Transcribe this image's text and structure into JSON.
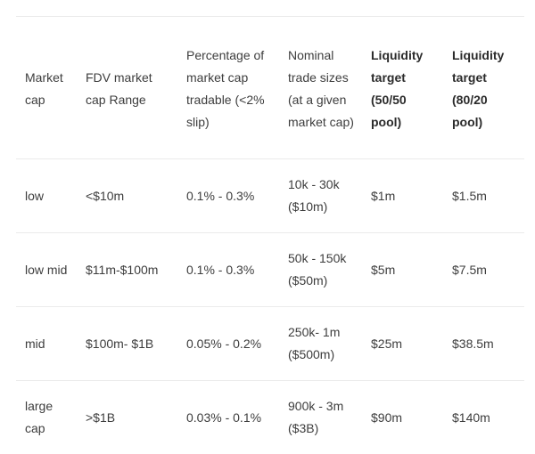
{
  "table": {
    "headers": [
      "Market cap",
      "FDV market cap Range",
      "Percentage of market cap tradable (<2% slip)",
      "Nominal trade sizes (at a given market cap)",
      "Liquidity target (50/50 pool)",
      "Liquidity target (80/20 pool)"
    ],
    "rows": [
      [
        "low",
        "<$10m",
        "0.1% - 0.3%",
        "10k - 30k ($10m)",
        "$1m",
        "$1.5m"
      ],
      [
        "low mid",
        "$11m-$100m",
        "0.1% - 0.3%",
        "50k - 150k ($50m)",
        "$5m",
        "$7.5m"
      ],
      [
        "mid",
        "$100m- $1B",
        "0.05% - 0.2%",
        "250k- 1m ($500m)",
        "$25m",
        "$38.5m"
      ],
      [
        "large cap",
        ">$1B",
        "0.03% - 0.1%",
        "900k - 3m ($3B)",
        "$90m",
        "$140m"
      ]
    ]
  }
}
